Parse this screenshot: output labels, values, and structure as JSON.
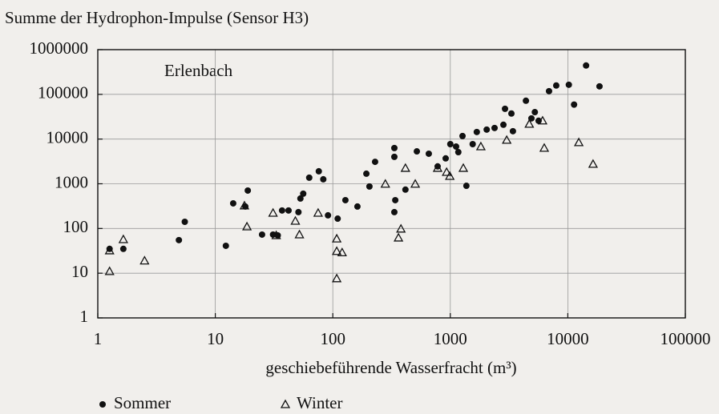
{
  "chart_data": {
    "type": "scatter",
    "title": "Summe der Hydrophon-Impulse (Sensor H3)",
    "x_label": "geschiebeführende Wasserfracht (m³)",
    "annotation": "Erlenbach",
    "xscale": "log",
    "yscale": "log",
    "grid": true,
    "legend": "bottom",
    "xlim": [
      1,
      100000
    ],
    "xticks": [
      1,
      10,
      100,
      1000,
      10000,
      100000
    ],
    "ylim": [
      1,
      1000000
    ],
    "yticks": [
      1,
      10,
      100,
      1000,
      10000,
      100000,
      1000000
    ],
    "series": [
      {
        "name": "Sommer",
        "color": "#111111",
        "marker": "circle",
        "x": [
          1.26,
          1.65,
          5.5,
          4.9,
          12.3,
          14.2,
          18.9,
          18,
          25,
          31,
          34,
          37,
          42,
          51,
          53,
          56,
          63,
          76,
          83,
          91,
          110,
          128,
          162,
          193,
          205,
          229,
          334,
          334,
          340,
          334,
          415,
          519,
          656,
          780,
          913,
          1000,
          1120,
          1170,
          1270,
          1370,
          1550,
          1680,
          2040,
          2380,
          2830,
          2920,
          3310,
          3410,
          4400,
          4900,
          5640,
          6920,
          10200,
          11300,
          14300,
          18600,
          7970,
          5240
        ],
        "values": [
          35,
          35,
          141,
          55,
          41,
          365,
          705,
          310,
          73,
          73,
          70,
          253,
          253,
          232,
          468,
          600,
          1370,
          1900,
          1260,
          197,
          166,
          430,
          310,
          1680,
          870,
          3100,
          6300,
          4000,
          430,
          232,
          740,
          5300,
          4700,
          2450,
          3700,
          7700,
          6800,
          5100,
          11700,
          900,
          7700,
          14400,
          16300,
          17700,
          20900,
          47500,
          37300,
          15000,
          72000,
          29000,
          25700,
          118000,
          164000,
          59000,
          442000,
          151000,
          158000,
          40000
        ]
      },
      {
        "name": "Winter",
        "color": "#111111",
        "marker": "triangle",
        "x": [
          1.26,
          1.26,
          1.65,
          2.5,
          17.7,
          18.6,
          31,
          33,
          48,
          52,
          75,
          108,
          108,
          120,
          108,
          280,
          362,
          380,
          415,
          503,
          780,
          930,
          990,
          1290,
          1820,
          3020,
          4700,
          6300,
          12400,
          16400,
          6100
        ],
        "values": [
          32,
          11,
          57,
          19,
          324,
          110,
          222,
          70,
          147,
          73,
          222,
          59,
          31,
          29,
          7.6,
          990,
          62,
          98,
          2240,
          990,
          2240,
          1820,
          1480,
          2240,
          6800,
          9500,
          21700,
          6300,
          8400,
          2760,
          25700
        ]
      }
    ]
  }
}
